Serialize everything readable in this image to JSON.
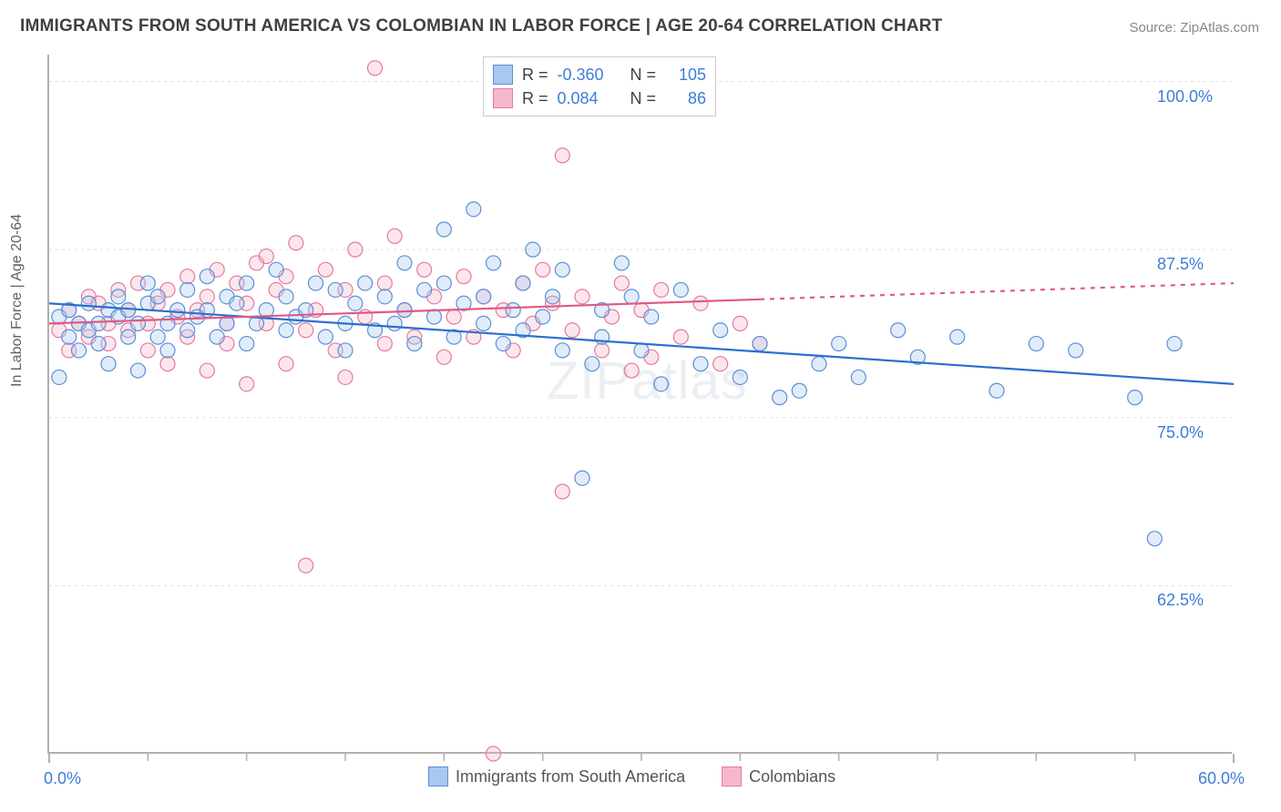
{
  "title": "IMMIGRANTS FROM SOUTH AMERICA VS COLOMBIAN IN LABOR FORCE | AGE 20-64 CORRELATION CHART",
  "source": "Source: ZipAtlas.com",
  "watermark": "ZIPatlas",
  "y_axis_label": "In Labor Force | Age 20-64",
  "chart": {
    "type": "scatter-correlation",
    "xlim": [
      0,
      60
    ],
    "ylim": [
      50,
      102
    ],
    "x_ticks": [
      {
        "pos": 0,
        "label": "0.0%"
      },
      {
        "pos": 60,
        "label": "60.0%"
      }
    ],
    "x_minor_ticks": [
      5,
      10,
      15,
      20,
      25,
      30,
      35,
      40,
      45,
      50,
      55
    ],
    "y_gridlines": [
      62.5,
      75.0,
      87.5,
      100.0
    ],
    "y_tick_labels": [
      "62.5%",
      "75.0%",
      "87.5%",
      "100.0%"
    ],
    "grid_color": "#dddddd",
    "grid_dash": "3,4",
    "background_color": "#ffffff",
    "axis_color": "#b0b0b0",
    "marker_radius": 8,
    "marker_stroke_width": 1.2,
    "marker_fill_opacity": 0.35,
    "trend_line_width": 2.2,
    "series": [
      {
        "name": "Immigrants from South America",
        "color_fill": "#a8c8f0",
        "color_stroke": "#5b8fd6",
        "trend_color": "#2b6fd0",
        "trend_x_range": [
          0,
          60
        ],
        "trend_y_range": [
          83.5,
          77.5
        ],
        "trend_dash_from_x": null,
        "r": -0.36,
        "n": 105,
        "points": [
          {
            "x": 0.5,
            "y": 82.5
          },
          {
            "x": 0.5,
            "y": 78.0
          },
          {
            "x": 1.0,
            "y": 81.0
          },
          {
            "x": 1.0,
            "y": 83.0
          },
          {
            "x": 1.5,
            "y": 82.0
          },
          {
            "x": 1.5,
            "y": 80.0
          },
          {
            "x": 2.0,
            "y": 83.5
          },
          {
            "x": 2.0,
            "y": 81.5
          },
          {
            "x": 2.5,
            "y": 82.0
          },
          {
            "x": 2.5,
            "y": 80.5
          },
          {
            "x": 3.0,
            "y": 83.0
          },
          {
            "x": 3.0,
            "y": 79.0
          },
          {
            "x": 3.5,
            "y": 82.5
          },
          {
            "x": 3.5,
            "y": 84.0
          },
          {
            "x": 4.0,
            "y": 81.0
          },
          {
            "x": 4.0,
            "y": 83.0
          },
          {
            "x": 4.5,
            "y": 78.5
          },
          {
            "x": 4.5,
            "y": 82.0
          },
          {
            "x": 5.0,
            "y": 83.5
          },
          {
            "x": 5.0,
            "y": 85.0
          },
          {
            "x": 5.5,
            "y": 81.0
          },
          {
            "x": 5.5,
            "y": 84.0
          },
          {
            "x": 6.0,
            "y": 82.0
          },
          {
            "x": 6.0,
            "y": 80.0
          },
          {
            "x": 6.5,
            "y": 83.0
          },
          {
            "x": 7.0,
            "y": 84.5
          },
          {
            "x": 7.0,
            "y": 81.5
          },
          {
            "x": 7.5,
            "y": 82.5
          },
          {
            "x": 8.0,
            "y": 83.0
          },
          {
            "x": 8.0,
            "y": 85.5
          },
          {
            "x": 8.5,
            "y": 81.0
          },
          {
            "x": 9.0,
            "y": 84.0
          },
          {
            "x": 9.0,
            "y": 82.0
          },
          {
            "x": 9.5,
            "y": 83.5
          },
          {
            "x": 10.0,
            "y": 80.5
          },
          {
            "x": 10.0,
            "y": 85.0
          },
          {
            "x": 10.5,
            "y": 82.0
          },
          {
            "x": 11.0,
            "y": 83.0
          },
          {
            "x": 11.5,
            "y": 86.0
          },
          {
            "x": 12.0,
            "y": 81.5
          },
          {
            "x": 12.0,
            "y": 84.0
          },
          {
            "x": 12.5,
            "y": 82.5
          },
          {
            "x": 13.0,
            "y": 83.0
          },
          {
            "x": 13.5,
            "y": 85.0
          },
          {
            "x": 14.0,
            "y": 81.0
          },
          {
            "x": 14.5,
            "y": 84.5
          },
          {
            "x": 15.0,
            "y": 82.0
          },
          {
            "x": 15.0,
            "y": 80.0
          },
          {
            "x": 15.5,
            "y": 83.5
          },
          {
            "x": 16.0,
            "y": 85.0
          },
          {
            "x": 16.5,
            "y": 81.5
          },
          {
            "x": 17.0,
            "y": 84.0
          },
          {
            "x": 17.5,
            "y": 82.0
          },
          {
            "x": 18.0,
            "y": 86.5
          },
          {
            "x": 18.0,
            "y": 83.0
          },
          {
            "x": 18.5,
            "y": 80.5
          },
          {
            "x": 19.0,
            "y": 84.5
          },
          {
            "x": 19.5,
            "y": 82.5
          },
          {
            "x": 20.0,
            "y": 85.0
          },
          {
            "x": 20.0,
            "y": 89.0
          },
          {
            "x": 20.5,
            "y": 81.0
          },
          {
            "x": 21.0,
            "y": 83.5
          },
          {
            "x": 21.5,
            "y": 90.5
          },
          {
            "x": 22.0,
            "y": 82.0
          },
          {
            "x": 22.0,
            "y": 84.0
          },
          {
            "x": 22.5,
            "y": 86.5
          },
          {
            "x": 23.0,
            "y": 80.5
          },
          {
            "x": 23.5,
            "y": 83.0
          },
          {
            "x": 24.0,
            "y": 85.0
          },
          {
            "x": 24.0,
            "y": 81.5
          },
          {
            "x": 24.5,
            "y": 87.5
          },
          {
            "x": 25.0,
            "y": 82.5
          },
          {
            "x": 25.5,
            "y": 84.0
          },
          {
            "x": 26.0,
            "y": 80.0
          },
          {
            "x": 26.0,
            "y": 86.0
          },
          {
            "x": 27.0,
            "y": 70.5
          },
          {
            "x": 27.5,
            "y": 79.0
          },
          {
            "x": 28.0,
            "y": 83.0
          },
          {
            "x": 28.0,
            "y": 81.0
          },
          {
            "x": 29.0,
            "y": 86.5
          },
          {
            "x": 29.5,
            "y": 84.0
          },
          {
            "x": 30.0,
            "y": 80.0
          },
          {
            "x": 30.5,
            "y": 82.5
          },
          {
            "x": 31.0,
            "y": 77.5
          },
          {
            "x": 32.0,
            "y": 84.5
          },
          {
            "x": 33.0,
            "y": 79.0
          },
          {
            "x": 34.0,
            "y": 81.5
          },
          {
            "x": 35.0,
            "y": 78.0
          },
          {
            "x": 36.0,
            "y": 80.5
          },
          {
            "x": 37.0,
            "y": 76.5
          },
          {
            "x": 38.0,
            "y": 77.0
          },
          {
            "x": 39.0,
            "y": 79.0
          },
          {
            "x": 40.0,
            "y": 80.5
          },
          {
            "x": 41.0,
            "y": 78.0
          },
          {
            "x": 43.0,
            "y": 81.5
          },
          {
            "x": 44.0,
            "y": 79.5
          },
          {
            "x": 46.0,
            "y": 81.0
          },
          {
            "x": 48.0,
            "y": 77.0
          },
          {
            "x": 50.0,
            "y": 80.5
          },
          {
            "x": 52.0,
            "y": 80.0
          },
          {
            "x": 55.0,
            "y": 76.5
          },
          {
            "x": 56.0,
            "y": 66.0
          },
          {
            "x": 57.0,
            "y": 80.5
          }
        ]
      },
      {
        "name": "Colombians",
        "color_fill": "#f5b8cb",
        "color_stroke": "#e67a9b",
        "trend_color": "#e05a85",
        "trend_x_range": [
          0,
          60
        ],
        "trend_y_range": [
          82.0,
          85.0
        ],
        "trend_dash_from_x": 36,
        "r": 0.084,
        "n": 86,
        "points": [
          {
            "x": 0.5,
            "y": 81.5
          },
          {
            "x": 1.0,
            "y": 83.0
          },
          {
            "x": 1.0,
            "y": 80.0
          },
          {
            "x": 1.5,
            "y": 82.0
          },
          {
            "x": 2.0,
            "y": 84.0
          },
          {
            "x": 2.0,
            "y": 81.0
          },
          {
            "x": 2.5,
            "y": 83.5
          },
          {
            "x": 3.0,
            "y": 82.0
          },
          {
            "x": 3.0,
            "y": 80.5
          },
          {
            "x": 3.5,
            "y": 84.5
          },
          {
            "x": 4.0,
            "y": 81.5
          },
          {
            "x": 4.0,
            "y": 83.0
          },
          {
            "x": 4.5,
            "y": 85.0
          },
          {
            "x": 5.0,
            "y": 82.0
          },
          {
            "x": 5.0,
            "y": 80.0
          },
          {
            "x": 5.5,
            "y": 83.5
          },
          {
            "x": 6.0,
            "y": 84.5
          },
          {
            "x": 6.0,
            "y": 79.0
          },
          {
            "x": 6.5,
            "y": 82.5
          },
          {
            "x": 7.0,
            "y": 85.5
          },
          {
            "x": 7.0,
            "y": 81.0
          },
          {
            "x": 7.5,
            "y": 83.0
          },
          {
            "x": 8.0,
            "y": 78.5
          },
          {
            "x": 8.0,
            "y": 84.0
          },
          {
            "x": 8.5,
            "y": 86.0
          },
          {
            "x": 9.0,
            "y": 82.0
          },
          {
            "x": 9.0,
            "y": 80.5
          },
          {
            "x": 9.5,
            "y": 85.0
          },
          {
            "x": 10.0,
            "y": 83.5
          },
          {
            "x": 10.0,
            "y": 77.5
          },
          {
            "x": 10.5,
            "y": 86.5
          },
          {
            "x": 11.0,
            "y": 87.0
          },
          {
            "x": 11.0,
            "y": 82.0
          },
          {
            "x": 11.5,
            "y": 84.5
          },
          {
            "x": 12.0,
            "y": 79.0
          },
          {
            "x": 12.0,
            "y": 85.5
          },
          {
            "x": 12.5,
            "y": 88.0
          },
          {
            "x": 13.0,
            "y": 81.5
          },
          {
            "x": 13.0,
            "y": 64.0
          },
          {
            "x": 13.5,
            "y": 83.0
          },
          {
            "x": 14.0,
            "y": 86.0
          },
          {
            "x": 14.5,
            "y": 80.0
          },
          {
            "x": 15.0,
            "y": 84.5
          },
          {
            "x": 15.0,
            "y": 78.0
          },
          {
            "x": 15.5,
            "y": 87.5
          },
          {
            "x": 16.0,
            "y": 82.5
          },
          {
            "x": 16.5,
            "y": 101.0
          },
          {
            "x": 17.0,
            "y": 85.0
          },
          {
            "x": 17.0,
            "y": 80.5
          },
          {
            "x": 17.5,
            "y": 88.5
          },
          {
            "x": 18.0,
            "y": 83.0
          },
          {
            "x": 18.5,
            "y": 81.0
          },
          {
            "x": 19.0,
            "y": 86.0
          },
          {
            "x": 19.5,
            "y": 84.0
          },
          {
            "x": 20.0,
            "y": 79.5
          },
          {
            "x": 20.5,
            "y": 82.5
          },
          {
            "x": 21.0,
            "y": 85.5
          },
          {
            "x": 21.5,
            "y": 81.0
          },
          {
            "x": 22.0,
            "y": 84.0
          },
          {
            "x": 22.5,
            "y": 50.0
          },
          {
            "x": 23.0,
            "y": 83.0
          },
          {
            "x": 23.5,
            "y": 80.0
          },
          {
            "x": 24.0,
            "y": 85.0
          },
          {
            "x": 24.5,
            "y": 82.0
          },
          {
            "x": 25.0,
            "y": 86.0
          },
          {
            "x": 25.5,
            "y": 83.5
          },
          {
            "x": 26.0,
            "y": 69.5
          },
          {
            "x": 26.0,
            "y": 94.5
          },
          {
            "x": 26.5,
            "y": 81.5
          },
          {
            "x": 27.0,
            "y": 84.0
          },
          {
            "x": 28.0,
            "y": 80.0
          },
          {
            "x": 28.5,
            "y": 82.5
          },
          {
            "x": 29.0,
            "y": 85.0
          },
          {
            "x": 29.5,
            "y": 78.5
          },
          {
            "x": 30.0,
            "y": 83.0
          },
          {
            "x": 30.5,
            "y": 79.5
          },
          {
            "x": 31.0,
            "y": 84.5
          },
          {
            "x": 32.0,
            "y": 81.0
          },
          {
            "x": 33.0,
            "y": 83.5
          },
          {
            "x": 34.0,
            "y": 79.0
          },
          {
            "x": 35.0,
            "y": 82.0
          },
          {
            "x": 36.0,
            "y": 80.5
          }
        ]
      }
    ]
  },
  "corr_box": {
    "rows": [
      {
        "swatch_fill": "#a8c8f0",
        "swatch_stroke": "#5b8fd6",
        "r_label": "R = ",
        "r": "-0.360",
        "n_label": "N = ",
        "n": "105"
      },
      {
        "swatch_fill": "#f5b8cb",
        "swatch_stroke": "#e67a9b",
        "r_label": "R = ",
        "r": "0.084",
        "n_label": "N = ",
        "n": "  86"
      }
    ]
  },
  "bottom_legend": [
    {
      "swatch_fill": "#a8c8f0",
      "swatch_stroke": "#5b8fd6",
      "label": "Immigrants from South America"
    },
    {
      "swatch_fill": "#f5b8cb",
      "swatch_stroke": "#e67a9b",
      "label": "Colombians"
    }
  ]
}
